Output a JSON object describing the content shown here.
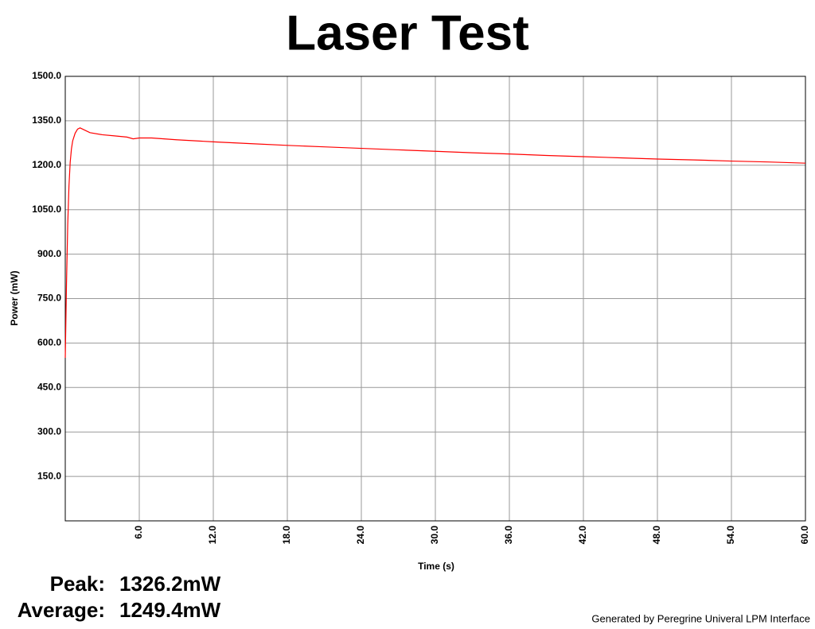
{
  "chart_data": {
    "type": "line",
    "title": "Laser Test",
    "x_label": "Time (s)",
    "y_label": "Power (mW)",
    "x": [
      0,
      0.1,
      0.2,
      0.3,
      0.4,
      0.5,
      0.6,
      0.8,
      1.0,
      1.2,
      1.5,
      2.0,
      3.0,
      4.0,
      5.0,
      5.5,
      6.0,
      7.0,
      9.0,
      12.0,
      15.0,
      18.0,
      21.0,
      24.0,
      27.0,
      30.0,
      33.0,
      36.0,
      39.0,
      42.0,
      45.0,
      48.0,
      51.0,
      54.0,
      57.0,
      60.0
    ],
    "series": [
      {
        "color": "#ff0000",
        "values": [
          550,
          800,
          1000,
          1130,
          1210,
          1255,
          1282,
          1308,
          1322,
          1326,
          1320,
          1310,
          1303,
          1299,
          1295,
          1289,
          1292,
          1292,
          1286,
          1279,
          1273,
          1267,
          1262,
          1257,
          1252,
          1247,
          1242,
          1238,
          1233,
          1229,
          1225,
          1221,
          1218,
          1214,
          1211,
          1207
        ]
      }
    ],
    "xlim": [
      0,
      60
    ],
    "xticks": [
      {
        "value": 6,
        "label": "6.0"
      },
      {
        "value": 12,
        "label": "12.0"
      },
      {
        "value": 18,
        "label": "18.0"
      },
      {
        "value": 24,
        "label": "24.0"
      },
      {
        "value": 30,
        "label": "30.0"
      },
      {
        "value": 36,
        "label": "36.0"
      },
      {
        "value": 42,
        "label": "42.0"
      },
      {
        "value": 48,
        "label": "48.0"
      },
      {
        "value": 54,
        "label": "54.0"
      },
      {
        "value": 60,
        "label": "60.0"
      }
    ],
    "ylim": [
      0,
      1500
    ],
    "yticks": [
      {
        "value": 150,
        "label": "150.0"
      },
      {
        "value": 300,
        "label": "300.0"
      },
      {
        "value": 450,
        "label": "450.0"
      },
      {
        "value": 600,
        "label": "600.0"
      },
      {
        "value": 750,
        "label": "750.0"
      },
      {
        "value": 900,
        "label": "900.0"
      },
      {
        "value": 1050,
        "label": "1050.0"
      },
      {
        "value": 1200,
        "label": "1200.0"
      },
      {
        "value": 1350,
        "label": "1350.0"
      },
      {
        "value": 1500,
        "label": "1500.0"
      }
    ],
    "grid": true
  },
  "stats": [
    {
      "label": "Peak:",
      "value": "1326.2mW"
    },
    {
      "label": "Average:",
      "value": "1249.4mW"
    }
  ],
  "footer": "Generated by Peregrine Univeral LPM Interface"
}
